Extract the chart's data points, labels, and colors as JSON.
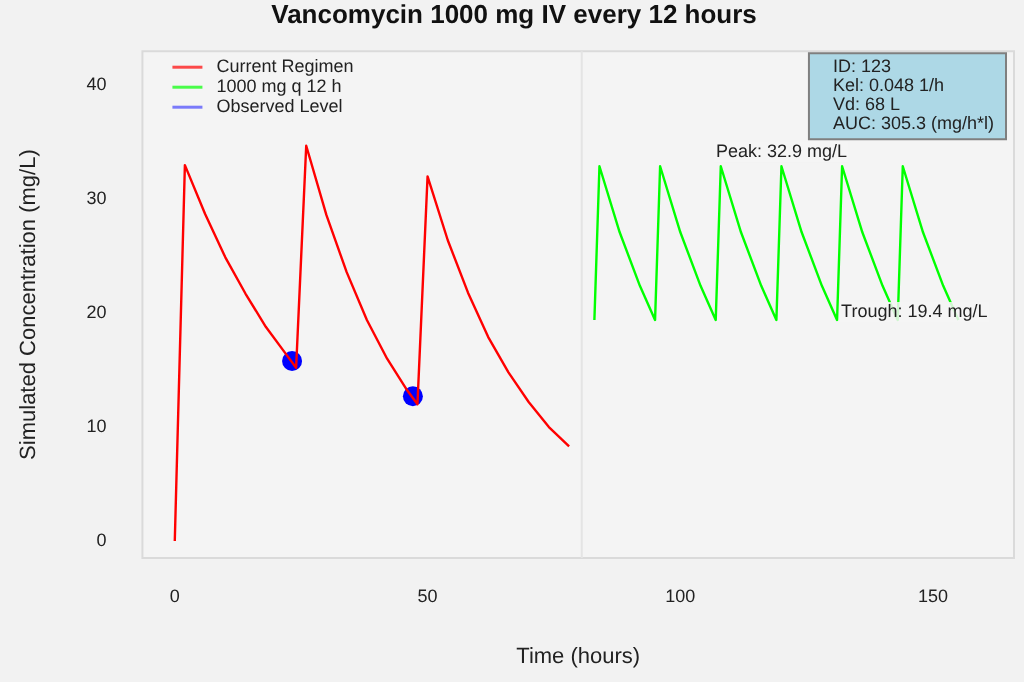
{
  "chart_data": {
    "type": "line",
    "title": "Vancomycin 1000 mg IV every 12 hours",
    "xlabel": "Time (hours)",
    "ylabel": "Simulated Concentration (mg/L)",
    "xlim": [
      -6.4,
      166
    ],
    "xticks": [
      0,
      50,
      100,
      150
    ],
    "ylim": [
      -1.5,
      43
    ],
    "yticks": [
      0,
      10,
      20,
      30,
      40
    ],
    "grid": false,
    "legend": "top left",
    "line_style": "solid",
    "series": [
      {
        "name": "Current Regimen",
        "color": "#ff0000",
        "marker": "none",
        "x": [
          0,
          2,
          6,
          10,
          14,
          18,
          22,
          24,
          26,
          30,
          34,
          38,
          42,
          46,
          48,
          50,
          54,
          58,
          62,
          66,
          70,
          74,
          78
        ],
        "values": [
          0,
          33,
          28.7,
          24.9,
          21.7,
          18.8,
          16.4,
          15.2,
          34.7,
          28.6,
          23.6,
          19.4,
          16.0,
          13.2,
          12.0,
          32,
          26.4,
          21.8,
          17.9,
          14.8,
          12.2,
          10.0,
          8.3
        ]
      },
      {
        "name": "1000 mg q 12 h",
        "color": "#00ff00",
        "marker": "none",
        "x": [
          83,
          84,
          88,
          92,
          95,
          96,
          100,
          104,
          107,
          108,
          112,
          116,
          119,
          120,
          124,
          128,
          131,
          132,
          136,
          140,
          143,
          144,
          148,
          152,
          155
        ],
        "values": [
          19.4,
          32.9,
          27.1,
          22.4,
          19.4,
          32.9,
          27.1,
          22.4,
          19.4,
          32.9,
          27.1,
          22.4,
          19.4,
          32.9,
          27.1,
          22.4,
          19.4,
          32.9,
          27.1,
          22.4,
          19.4,
          32.9,
          27.1,
          22.4,
          19.4
        ]
      },
      {
        "name": "Observed Level",
        "type": "scatter",
        "color": "#0000ff",
        "marker": "circle",
        "x": [
          23.2,
          47.1
        ],
        "values": [
          15.8,
          12.7
        ]
      }
    ],
    "ref_lines": [
      {
        "axis": "x",
        "value": 80.5,
        "color": "#e4e4e4"
      }
    ],
    "annotations": [
      {
        "text": "Peak: 32.9 mg/L",
        "x": 120,
        "y": 32.9
      },
      {
        "text": "Trough: 19.4 mg/L",
        "x": 131,
        "y": 19.4
      },
      "ID: 123",
      "Kel: 0.048 1/h",
      "Vd: 68 L",
      "AUC: 305.3 (mg/h*l)"
    ]
  }
}
